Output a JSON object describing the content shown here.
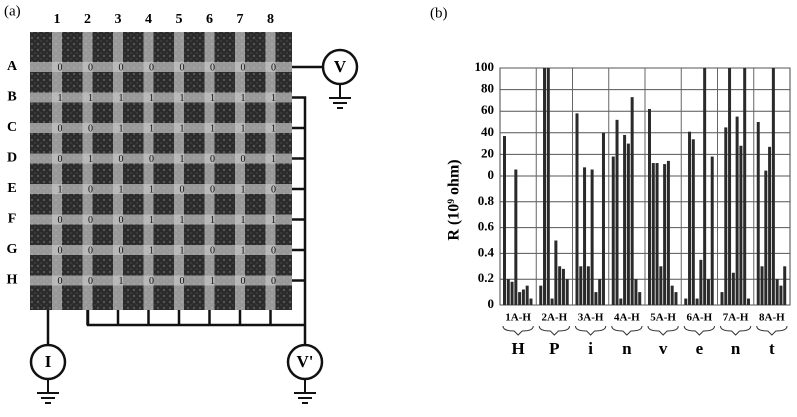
{
  "panel_a": {
    "label": "(a)",
    "columns": [
      "1",
      "2",
      "3",
      "4",
      "5",
      "6",
      "7",
      "8"
    ],
    "rows": [
      "A",
      "B",
      "C",
      "D",
      "E",
      "F",
      "G",
      "H"
    ],
    "cells": [
      [
        0,
        0,
        0,
        0,
        0,
        0,
        0,
        0
      ],
      [
        1,
        1,
        1,
        1,
        1,
        1,
        1,
        1
      ],
      [
        0,
        0,
        1,
        1,
        1,
        1,
        1,
        1
      ],
      [
        0,
        1,
        0,
        0,
        1,
        0,
        0,
        1
      ],
      [
        1,
        0,
        1,
        1,
        0,
        0,
        1,
        0
      ],
      [
        0,
        0,
        0,
        1,
        1,
        1,
        1,
        1
      ],
      [
        0,
        0,
        0,
        1,
        1,
        0,
        1,
        0
      ],
      [
        0,
        0,
        1,
        0,
        0,
        1,
        0,
        0
      ]
    ],
    "meters": {
      "v": "V",
      "v_prime": "V'",
      "i": "I"
    }
  },
  "chart_data": {
    "type": "bar",
    "label": "(b)",
    "y_label": "R (10⁹ ohm)",
    "categories": [
      "1A-H",
      "2A-H",
      "3A-H",
      "4A-H",
      "5A-H",
      "6A-H",
      "7A-H",
      "8A-H"
    ],
    "letters": [
      "H",
      "P",
      "i",
      "n",
      "v",
      "e",
      "n",
      "t"
    ],
    "values": [
      [
        37,
        0.2,
        0.18,
        6,
        0.1,
        0.12,
        0.15,
        0.05
      ],
      [
        0.15,
        100,
        100,
        0.05,
        0.5,
        0.3,
        0.28,
        0.2
      ],
      [
        58,
        0.3,
        8,
        0.3,
        6,
        0.1,
        0.2,
        40
      ],
      [
        18,
        52,
        0.05,
        38,
        30,
        73,
        0.2,
        0.1
      ],
      [
        62,
        12,
        12,
        0.3,
        11,
        14,
        0.15,
        0.1
      ],
      [
        0.05,
        41,
        34,
        0.05,
        0.35,
        100,
        0.2,
        18
      ],
      [
        0.1,
        45,
        100,
        0.25,
        55,
        28,
        100,
        0.05
      ],
      [
        50,
        0.3,
        5,
        27,
        100,
        0.2,
        0.15,
        0.3
      ]
    ],
    "color": "#2a2a2a",
    "ylim": [
      0,
      100
    ],
    "yticks": [
      100,
      80,
      60,
      40,
      20,
      0
    ],
    "ylim_low": [
      0,
      1
    ],
    "yticks_low": [
      0.8,
      0.6,
      0.4,
      0.2,
      0
    ],
    "grid": true
  }
}
